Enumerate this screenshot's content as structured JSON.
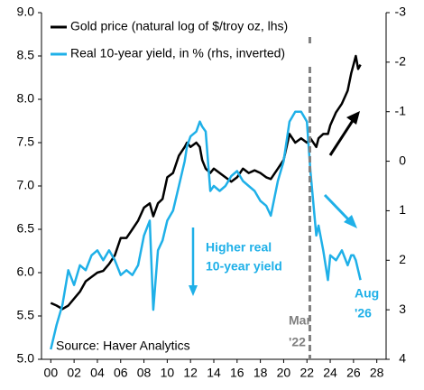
{
  "chart_data": {
    "type": "line",
    "x": [
      2000,
      2000.5,
      2001,
      2001.5,
      2002,
      2002.5,
      2003,
      2003.5,
      2004,
      2004.5,
      2005,
      2005.5,
      2006,
      2006.5,
      2007,
      2007.5,
      2008,
      2008.5,
      2008.8,
      2009.2,
      2009.6,
      2010,
      2010.5,
      2011,
      2011.5,
      2011.7,
      2012,
      2012.5,
      2012.8,
      2013,
      2013.3,
      2013.7,
      2014,
      2014.5,
      2015,
      2015.5,
      2016,
      2016.5,
      2017,
      2017.5,
      2018,
      2018.5,
      2018.9,
      2019.5,
      2020,
      2020.5,
      2021,
      2021.5,
      2022,
      2022.3,
      2022.8,
      2023,
      2023.4,
      2023.8,
      2024,
      2024.5,
      2025,
      2025.5,
      2025.8,
      2026,
      2026.2,
      2026.4,
      2026.6
    ],
    "series": [
      {
        "name": "Gold price (natural log of $/troy oz, lhs)",
        "color": "#000000",
        "values": [
          5.65,
          5.62,
          5.58,
          5.62,
          5.7,
          5.78,
          5.9,
          5.95,
          6.0,
          6.02,
          6.1,
          6.2,
          6.4,
          6.4,
          6.5,
          6.6,
          6.75,
          6.8,
          6.65,
          6.8,
          6.85,
          7.1,
          7.15,
          7.35,
          7.45,
          7.5,
          7.45,
          7.5,
          7.45,
          7.3,
          7.2,
          7.15,
          7.2,
          7.15,
          7.1,
          7.05,
          7.1,
          7.2,
          7.15,
          7.18,
          7.15,
          7.1,
          7.08,
          7.2,
          7.3,
          7.6,
          7.5,
          7.55,
          7.5,
          7.55,
          7.45,
          7.55,
          7.6,
          7.6,
          7.7,
          7.85,
          7.95,
          8.1,
          8.3,
          8.4,
          8.5,
          8.35,
          8.4
        ]
      },
      {
        "name": "Real 10-year yield, in % (rhs, inverted)",
        "color": "#1fb0e8",
        "axis": "y2",
        "values": [
          3.8,
          3.3,
          2.9,
          2.2,
          2.5,
          2.1,
          2.2,
          1.9,
          1.8,
          2.0,
          1.8,
          2.0,
          2.3,
          2.2,
          2.3,
          2.1,
          1.5,
          1.2,
          3.0,
          1.8,
          1.6,
          1.2,
          1.0,
          0.5,
          0.0,
          -0.3,
          -0.5,
          -0.6,
          -0.8,
          -0.7,
          -0.6,
          0.6,
          0.5,
          0.6,
          0.5,
          0.3,
          0.2,
          0.4,
          0.5,
          0.6,
          0.8,
          0.9,
          1.1,
          0.4,
          0.0,
          -0.8,
          -1.0,
          -1.0,
          -0.8,
          0.2,
          1.5,
          1.3,
          1.8,
          2.4,
          1.9,
          2.0,
          1.8,
          2.1,
          1.9,
          1.9,
          2.0,
          2.2,
          2.4
        ]
      }
    ],
    "xlim": [
      1999.2,
      2028.8
    ],
    "xticks": [
      {
        "value": 2000,
        "label": "00"
      },
      {
        "value": 2002,
        "label": "02"
      },
      {
        "value": 2004,
        "label": "04"
      },
      {
        "value": 2006,
        "label": "06"
      },
      {
        "value": 2008,
        "label": "08"
      },
      {
        "value": 2010,
        "label": "10"
      },
      {
        "value": 2012,
        "label": "12"
      },
      {
        "value": 2014,
        "label": "14"
      },
      {
        "value": 2016,
        "label": "16"
      },
      {
        "value": 2018,
        "label": "18"
      },
      {
        "value": 2020,
        "label": "20"
      },
      {
        "value": 2022,
        "label": "22"
      },
      {
        "value": 2024,
        "label": "24"
      },
      {
        "value": 2026,
        "label": "26"
      },
      {
        "value": 2028,
        "label": "28"
      }
    ],
    "ylim": [
      5.0,
      9.0
    ],
    "yticks": [
      {
        "value": 5.0,
        "label": "5.0"
      },
      {
        "value": 5.5,
        "label": "5.5"
      },
      {
        "value": 6.0,
        "label": "6.0"
      },
      {
        "value": 6.5,
        "label": "6.5"
      },
      {
        "value": 7.0,
        "label": "7.0"
      },
      {
        "value": 7.5,
        "label": "7.5"
      },
      {
        "value": 8.0,
        "label": "8.0"
      },
      {
        "value": 8.5,
        "label": "8.5"
      },
      {
        "value": 9.0,
        "label": "9.0"
      }
    ],
    "y2lim": [
      -3,
      4
    ],
    "y2_inverted": true,
    "y2ticks": [
      -3,
      -2,
      -1,
      0,
      1,
      2,
      3,
      4
    ],
    "vline_x": 2022.25,
    "annotations": {
      "yield_note": [
        "Higher real",
        "10-year yield"
      ],
      "vline_note": [
        "Mar",
        "'22"
      ],
      "end_note": [
        "Aug",
        "'26"
      ],
      "source": "Source: Haver Analytics"
    }
  }
}
